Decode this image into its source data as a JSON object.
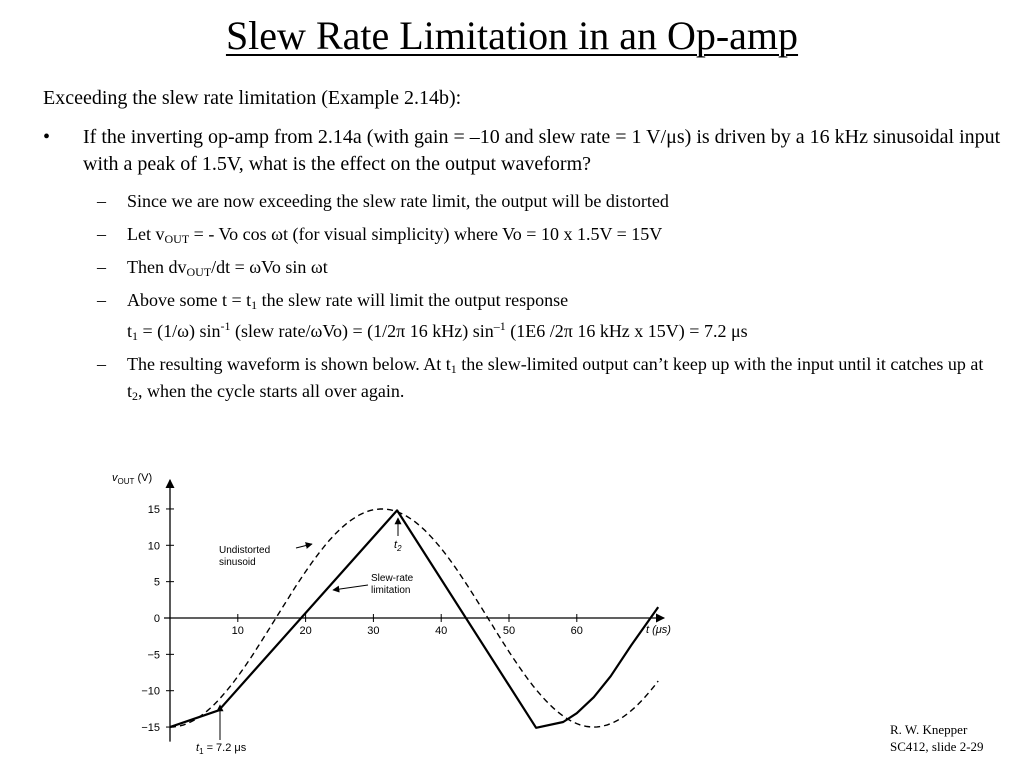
{
  "title": "Slew Rate Limitation in an Op-amp",
  "intro": "Exceeding the slew rate limitation (Example 2.14b):",
  "bullet": {
    "mark": "•",
    "text": "If the inverting op-amp from 2.14a (with gain = –10 and slew rate = 1 V/μs) is driven by a 16 kHz sinusoidal input with a peak of 1.5V, what is the effect on the output waveform?"
  },
  "subs": {
    "dash": "–",
    "s1": "Since we are now exceeding the slew rate limit, the output will be distorted",
    "s2": {
      "a": "Let v",
      "sub": "OUT",
      "b": " = - Vo cos ωt (for visual simplicity) where Vo = 10 x 1.5V = 15V"
    },
    "s3": {
      "a": "Then dv",
      "sub": "OUT",
      "b": "/dt = ωVo sin ωt"
    },
    "s4": {
      "a": "Above some t = t",
      "sub": "1",
      "b": " the slew rate will limit the output response"
    },
    "s5": {
      "a": "t",
      "sub1": "1",
      "b": " = (1/ω) sin",
      "sup1": "-1",
      "c": " (slew rate/ωVo) = (1/2π 16 kHz) sin",
      "sup2": "–1",
      "d": " (1E6 /2π 16 kHz x 15V) = 7.2 μs"
    },
    "s6": {
      "a": "The resulting waveform is shown below.  At t",
      "sub1": "1",
      "b": " the slew-limited output can’t keep up with the input until it catches up at t",
      "sub2": "2",
      "c": ", when the cycle starts all over again."
    }
  },
  "chart_data": {
    "type": "line",
    "ylabel_main": "v",
    "ylabel_sub": "OUT",
    "ylabel_unit": " (V)",
    "xlabel": "t (μs)",
    "xticks": [
      10,
      20,
      30,
      40,
      50,
      60
    ],
    "yticks": [
      15,
      10,
      5,
      0,
      -5,
      -10,
      -15
    ],
    "ytick_labels": [
      "15",
      "10",
      "5",
      "0",
      "−5",
      "−10",
      "−15"
    ],
    "xlim": [
      0,
      72
    ],
    "ylim": [
      -17,
      19
    ],
    "series": [
      {
        "name": "Undistorted sinusoid",
        "style": "dashed",
        "function": "-15cos(2π·0.016·t)",
        "t_range": [
          0,
          72
        ]
      },
      {
        "name": "Slew-rate limitation",
        "style": "solid",
        "x": [
          0,
          7.2,
          33.5,
          54.0,
          58.0,
          60.0,
          62.5,
          65.0,
          68.0,
          72.0
        ],
        "y": [
          -15.0,
          -12.7,
          14.8,
          -15.1,
          -14.3,
          -13.1,
          -10.9,
          -8.0,
          -3.8,
          1.5
        ]
      }
    ],
    "legend_entries": [
      {
        "lines": [
          "Undistorted",
          "sinusoid"
        ]
      },
      {
        "lines": [
          "Slew-rate",
          "limitation"
        ]
      }
    ],
    "t1_main": "t",
    "t1_sub": "1",
    "t1_rest": " = 7.2 μs",
    "t2_main": "t",
    "t2_sub": "2"
  },
  "footer": {
    "line1": "R. W. Knepper",
    "line2": "SC412, slide 2-29"
  }
}
